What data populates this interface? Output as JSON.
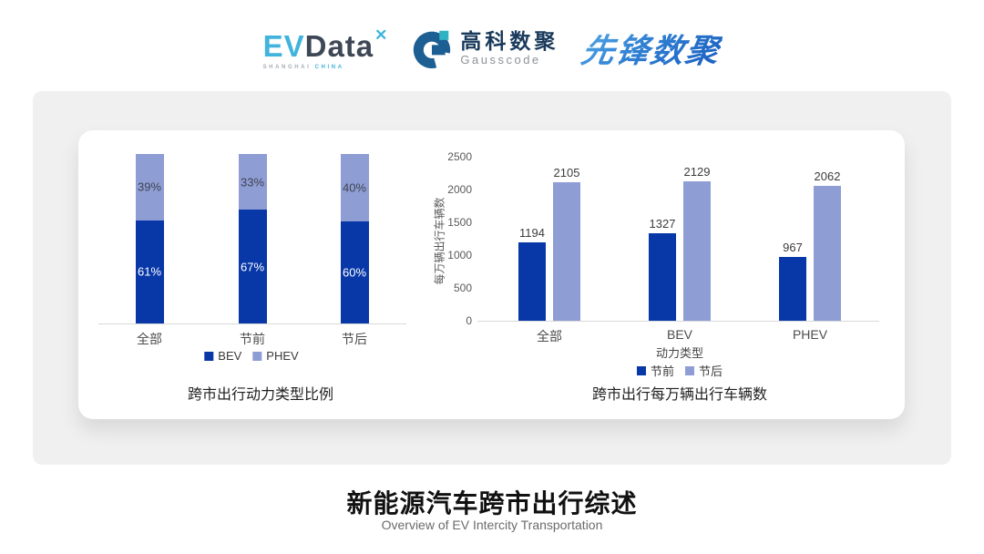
{
  "header": {
    "evdata": {
      "part1": "EV",
      "part2": "Data",
      "mark": "✕",
      "sub1": "SHANGHAI",
      "sub2": "CHINA"
    },
    "gausscode": {
      "name_cn": "高科数聚",
      "name_en": "Gausscode"
    },
    "xianfeng": {
      "name": "先锋数聚"
    }
  },
  "colors": {
    "series_dark": "#0838a8",
    "series_light": "#8f9dd5",
    "axis_line": "#d9d9d9",
    "card_bg": "#f0f0f1"
  },
  "chart_data": [
    {
      "type": "bar",
      "variant": "stacked_percent",
      "title": "跨市出行动力类型比例",
      "categories": [
        "全部",
        "节前",
        "节后"
      ],
      "series": [
        {
          "name": "BEV",
          "color": "#0838a8",
          "values": [
            61,
            67,
            60
          ],
          "labels": [
            "61%",
            "67%",
            "60%"
          ],
          "label_color": "#ffffff"
        },
        {
          "name": "PHEV",
          "color": "#8f9dd5",
          "values": [
            39,
            33,
            40
          ],
          "labels": [
            "39%",
            "33%",
            "40%"
          ],
          "label_color": "#3f4450"
        }
      ],
      "ylim": [
        0,
        100
      ],
      "legend_position": "bottom",
      "grid": false
    },
    {
      "type": "bar",
      "variant": "grouped",
      "title": "跨市出行每万辆出行车辆数",
      "categories": [
        "全部",
        "BEV",
        "PHEV"
      ],
      "xlabel": "动力类型",
      "ylabel": "每万辆出行车辆数",
      "ylim": [
        0,
        2500
      ],
      "yticks": [
        0,
        500,
        1000,
        1500,
        2000,
        2500
      ],
      "series": [
        {
          "name": "节前",
          "color": "#0838a8",
          "values": [
            1194,
            1327,
            967
          ]
        },
        {
          "name": "节后",
          "color": "#8f9dd5",
          "values": [
            2105,
            2129,
            2062
          ]
        }
      ],
      "legend_position": "bottom",
      "grid": false
    }
  ],
  "footer": {
    "title": "新能源汽车跨市出行综述",
    "subtitle": "Overview of EV Intercity Transportation"
  }
}
